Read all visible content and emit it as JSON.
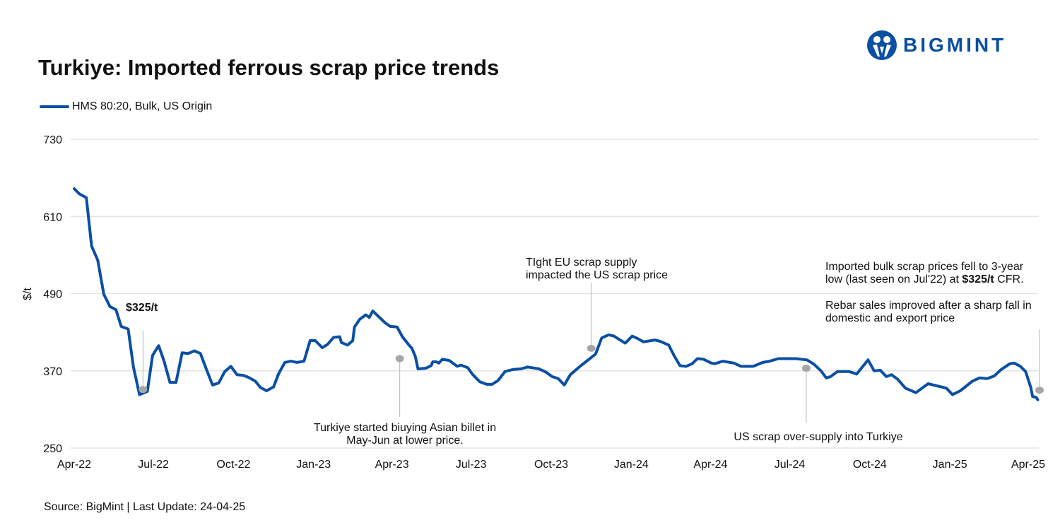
{
  "title": "Turkiye: Imported ferrous scrap price trends",
  "logo_text": "BIGMINT",
  "source": "Source: BigMint | Last Update: 24-04-25",
  "colors": {
    "line": "#0a4fa3",
    "grid": "#e3e3e3",
    "marker": "#a6a6a6",
    "logo": "#0a4fa3"
  },
  "chart_data": {
    "type": "line",
    "title": "Turkiye: Imported ferrous scrap price trends",
    "ylabel": "$/t",
    "xlabel": "",
    "ylim": [
      250,
      730
    ],
    "yticks": [
      250,
      370,
      490,
      610,
      730
    ],
    "xticks": [
      {
        "date": "2022-04-01",
        "label": "Apr-22"
      },
      {
        "date": "2022-07-01",
        "label": "Jul-22"
      },
      {
        "date": "2022-10-01",
        "label": "Oct-22"
      },
      {
        "date": "2023-01-01",
        "label": "Jan-23"
      },
      {
        "date": "2023-04-01",
        "label": "Apr-23"
      },
      {
        "date": "2023-07-01",
        "label": "Jul-23"
      },
      {
        "date": "2023-10-01",
        "label": "Oct-23"
      },
      {
        "date": "2024-01-01",
        "label": "Jan-24"
      },
      {
        "date": "2024-04-01",
        "label": "Apr-24"
      },
      {
        "date": "2024-07-01",
        "label": "Jul-24"
      },
      {
        "date": "2024-10-01",
        "label": "Oct-24"
      },
      {
        "date": "2025-01-01",
        "label": "Jan-25"
      },
      {
        "date": "2025-04-01",
        "label": "Apr-25"
      }
    ],
    "grid": true,
    "legend_position": "top-left",
    "series": [
      {
        "name": "HMS 80:20, Bulk, US Origin",
        "points": [
          [
            "2022-04-01",
            653
          ],
          [
            "2022-04-07",
            645
          ],
          [
            "2022-04-15",
            639
          ],
          [
            "2022-04-21",
            564
          ],
          [
            "2022-04-28",
            542
          ],
          [
            "2022-05-05",
            489
          ],
          [
            "2022-05-12",
            470
          ],
          [
            "2022-05-19",
            465
          ],
          [
            "2022-05-25",
            439
          ],
          [
            "2022-06-02",
            435
          ],
          [
            "2022-06-08",
            376
          ],
          [
            "2022-06-15",
            333
          ],
          [
            "2022-06-24",
            338
          ],
          [
            "2022-06-30",
            394
          ],
          [
            "2022-07-07",
            409
          ],
          [
            "2022-07-13",
            386
          ],
          [
            "2022-07-20",
            352
          ],
          [
            "2022-07-27",
            352
          ],
          [
            "2022-08-03",
            398
          ],
          [
            "2022-08-10",
            397
          ],
          [
            "2022-08-17",
            401
          ],
          [
            "2022-08-24",
            397
          ],
          [
            "2022-08-31",
            372
          ],
          [
            "2022-09-07",
            348
          ],
          [
            "2022-09-14",
            351
          ],
          [
            "2022-09-21",
            369
          ],
          [
            "2022-09-28",
            377
          ],
          [
            "2022-10-05",
            364
          ],
          [
            "2022-10-12",
            363
          ],
          [
            "2022-10-18",
            360
          ],
          [
            "2022-10-26",
            354
          ],
          [
            "2022-11-01",
            344
          ],
          [
            "2022-11-08",
            339
          ],
          [
            "2022-11-16",
            345
          ],
          [
            "2022-11-22",
            366
          ],
          [
            "2022-11-29",
            383
          ],
          [
            "2022-12-06",
            385
          ],
          [
            "2022-12-13",
            383
          ],
          [
            "2022-12-21",
            385
          ],
          [
            "2022-12-28",
            417
          ],
          [
            "2023-01-03",
            417
          ],
          [
            "2023-01-11",
            406
          ],
          [
            "2023-01-17",
            411
          ],
          [
            "2023-01-24",
            422
          ],
          [
            "2023-01-31",
            423
          ],
          [
            "2023-02-02",
            414
          ],
          [
            "2023-02-09",
            410
          ],
          [
            "2023-02-15",
            417
          ],
          [
            "2023-02-17",
            438
          ],
          [
            "2023-02-23",
            450
          ],
          [
            "2023-03-02",
            457
          ],
          [
            "2023-03-06",
            453
          ],
          [
            "2023-03-10",
            463
          ],
          [
            "2023-03-17",
            454
          ],
          [
            "2023-03-24",
            445
          ],
          [
            "2023-03-30",
            439
          ],
          [
            "2023-04-07",
            438
          ],
          [
            "2023-04-13",
            423
          ],
          [
            "2023-04-20",
            411
          ],
          [
            "2023-04-24",
            405
          ],
          [
            "2023-04-28",
            392
          ],
          [
            "2023-05-01",
            373
          ],
          [
            "2023-05-10",
            374
          ],
          [
            "2023-05-16",
            378
          ],
          [
            "2023-05-18",
            384
          ],
          [
            "2023-05-22",
            384
          ],
          [
            "2023-05-25",
            382
          ],
          [
            "2023-05-29",
            388
          ],
          [
            "2023-06-06",
            386
          ],
          [
            "2023-06-15",
            377
          ],
          [
            "2023-06-19",
            379
          ],
          [
            "2023-06-27",
            375
          ],
          [
            "2023-07-03",
            364
          ],
          [
            "2023-07-11",
            353
          ],
          [
            "2023-07-19",
            349
          ],
          [
            "2023-07-25",
            349
          ],
          [
            "2023-08-01",
            355
          ],
          [
            "2023-08-09",
            369
          ],
          [
            "2023-08-18",
            372
          ],
          [
            "2023-08-27",
            373
          ],
          [
            "2023-09-04",
            376
          ],
          [
            "2023-09-17",
            373
          ],
          [
            "2023-09-25",
            368
          ],
          [
            "2023-10-02",
            361
          ],
          [
            "2023-10-09",
            358
          ],
          [
            "2023-10-16",
            348
          ],
          [
            "2023-10-23",
            364
          ],
          [
            "2023-11-04",
            378
          ],
          [
            "2023-11-21",
            396
          ],
          [
            "2023-11-28",
            421
          ],
          [
            "2023-12-06",
            426
          ],
          [
            "2023-12-12",
            424
          ],
          [
            "2023-12-25",
            413
          ],
          [
            "2024-01-02",
            424
          ],
          [
            "2024-01-07",
            421
          ],
          [
            "2024-01-15",
            415
          ],
          [
            "2024-01-28",
            418
          ],
          [
            "2024-02-03",
            416
          ],
          [
            "2024-02-13",
            410
          ],
          [
            "2024-02-19",
            394
          ],
          [
            "2024-02-26",
            378
          ],
          [
            "2024-03-04",
            377
          ],
          [
            "2024-03-11",
            381
          ],
          [
            "2024-03-17",
            389
          ],
          [
            "2024-03-24",
            388
          ],
          [
            "2024-04-02",
            382
          ],
          [
            "2024-04-06",
            381
          ],
          [
            "2024-04-15",
            385
          ],
          [
            "2024-04-28",
            382
          ],
          [
            "2024-05-06",
            377
          ],
          [
            "2024-05-20",
            377
          ],
          [
            "2024-05-31",
            383
          ],
          [
            "2024-06-08",
            385
          ],
          [
            "2024-06-18",
            389
          ],
          [
            "2024-07-08",
            389
          ],
          [
            "2024-07-21",
            387
          ],
          [
            "2024-07-29",
            380
          ],
          [
            "2024-08-06",
            370
          ],
          [
            "2024-08-12",
            359
          ],
          [
            "2024-08-17",
            361
          ],
          [
            "2024-08-25",
            369
          ],
          [
            "2024-09-07",
            369
          ],
          [
            "2024-09-16",
            365
          ],
          [
            "2024-09-29",
            387
          ],
          [
            "2024-10-06",
            370
          ],
          [
            "2024-10-13",
            371
          ],
          [
            "2024-10-20",
            361
          ],
          [
            "2024-10-26",
            364
          ],
          [
            "2024-11-02",
            357
          ],
          [
            "2024-11-11",
            343
          ],
          [
            "2024-11-23",
            336
          ],
          [
            "2024-12-07",
            350
          ],
          [
            "2024-12-19",
            346
          ],
          [
            "2024-12-28",
            343
          ],
          [
            "2025-01-04",
            333
          ],
          [
            "2025-01-13",
            339
          ],
          [
            "2025-01-27",
            354
          ],
          [
            "2025-02-04",
            359
          ],
          [
            "2025-02-13",
            358
          ],
          [
            "2025-02-21",
            362
          ],
          [
            "2025-03-01",
            372
          ],
          [
            "2025-03-11",
            381
          ],
          [
            "2025-03-16",
            382
          ],
          [
            "2025-03-23",
            377
          ],
          [
            "2025-03-29",
            369
          ],
          [
            "2025-04-04",
            344
          ],
          [
            "2025-04-06",
            330
          ],
          [
            "2025-04-10",
            329
          ],
          [
            "2025-04-12",
            325
          ]
        ]
      }
    ],
    "annotations": [
      {
        "date": "2022-06-19",
        "value": 341,
        "lines": [
          "$325/t"
        ]
      },
      {
        "date": "2023-04-10",
        "value": 389,
        "lines": [
          "Turkiye started biuying Asian billet in",
          "May-Jun at lower price."
        ]
      },
      {
        "date": "2023-11-16",
        "value": 405,
        "lines": [
          "TIght EU scrap supply",
          "impacted the US scrap price"
        ]
      },
      {
        "date": "2024-07-20",
        "value": 374,
        "lines": [
          "US scrap over-supply into Turkiye"
        ]
      },
      {
        "date": "2025-04-14",
        "value": 340,
        "lines": [
          "Imported bulk scrap prices fell to 3-year",
          "low (last seen on Jul'22) at ",
          "$325/t",
          " CFR.",
          "Rebar sales improved after a sharp fall in",
          "domestic and export price"
        ]
      }
    ]
  }
}
